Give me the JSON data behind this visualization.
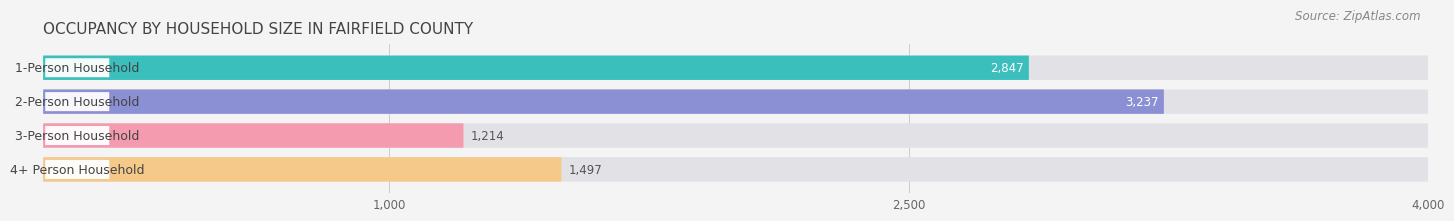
{
  "title": "OCCUPANCY BY HOUSEHOLD SIZE IN FAIRFIELD COUNTY",
  "source": "Source: ZipAtlas.com",
  "categories": [
    "1-Person Household",
    "2-Person Household",
    "3-Person Household",
    "4+ Person Household"
  ],
  "values": [
    2847,
    3237,
    1214,
    1497
  ],
  "bar_colors": [
    "#3bbfbc",
    "#8b8fd4",
    "#f59bb0",
    "#f5c98a"
  ],
  "xlim": [
    0,
    4000
  ],
  "xticks": [
    1000,
    2500,
    4000
  ],
  "background_color": "#f4f4f4",
  "bar_bg_color": "#e2e2e6",
  "label_bg_color": "#ffffff",
  "title_fontsize": 11,
  "source_fontsize": 8.5,
  "bar_height": 0.72
}
